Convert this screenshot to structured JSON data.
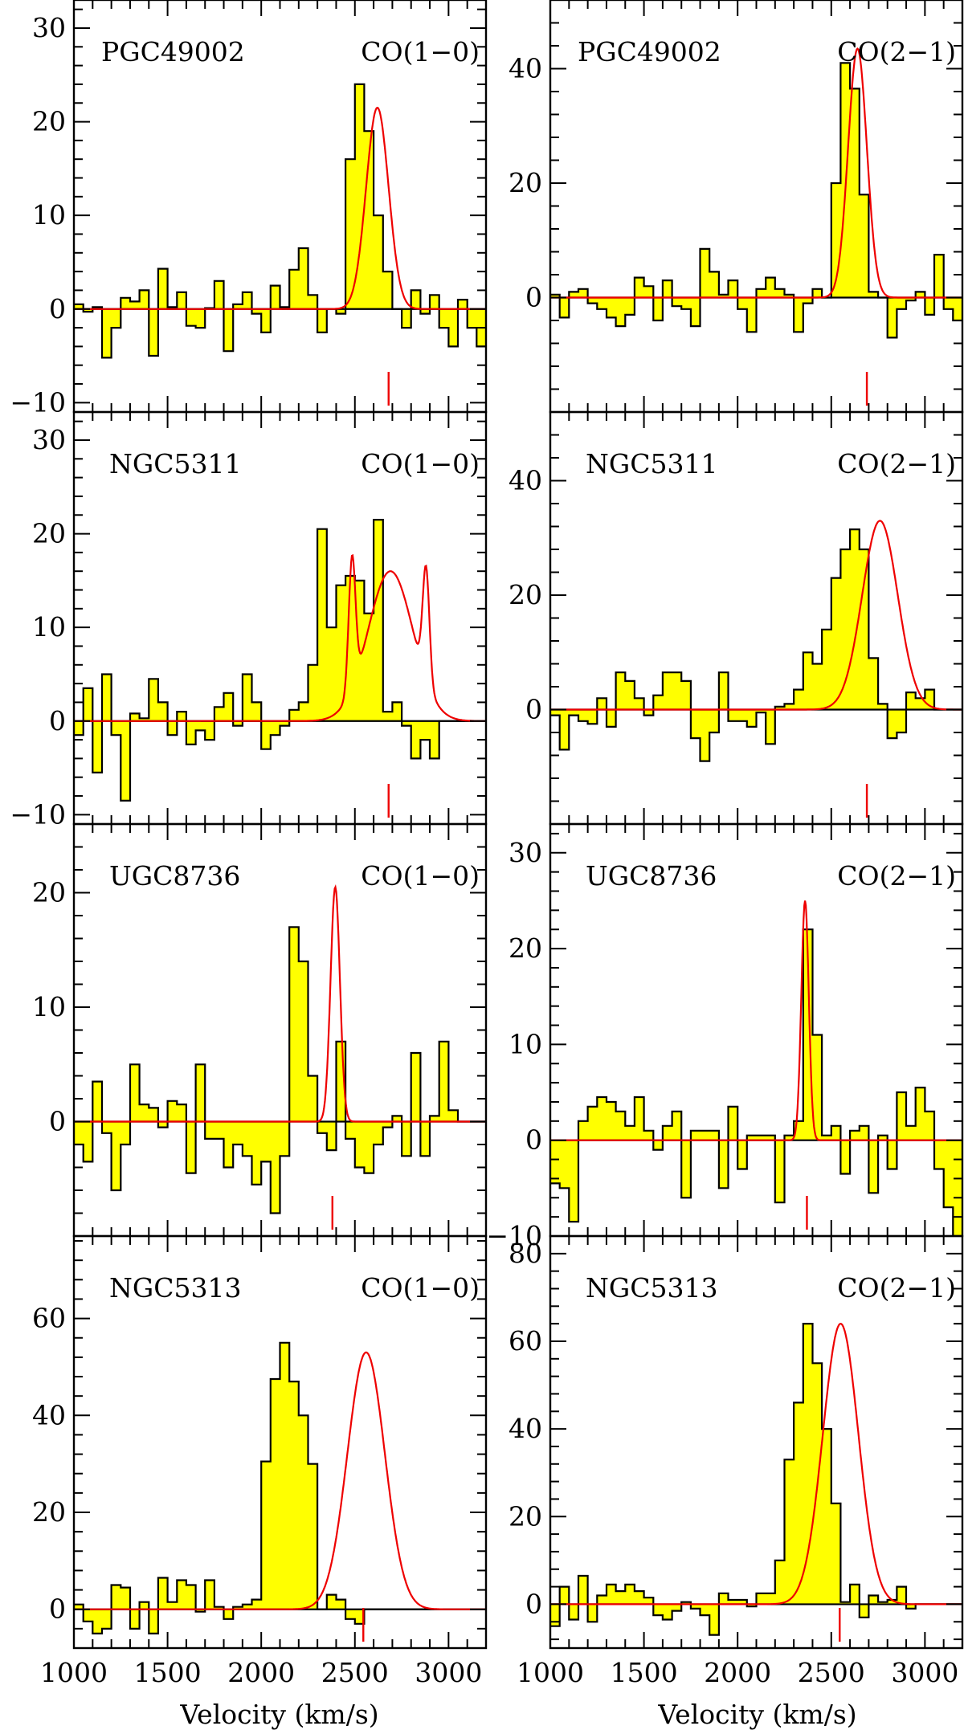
{
  "xlabel": "Velocity (km/s)",
  "colors": {
    "fill": "#ffff00",
    "fit": "#ee0000",
    "marker": "#ee0000",
    "axis": "#000000"
  },
  "chart_data": [
    {
      "type": "bar",
      "name": "PGC49002",
      "line": "CO(1−0)",
      "xlim": [
        1000,
        3200
      ],
      "ylim": [
        -11,
        33
      ],
      "yticks": [
        -10,
        0,
        10,
        20,
        30
      ],
      "xticks": [
        1000,
        1500,
        2000,
        2500,
        3000
      ],
      "bin_width": 50,
      "bin_start": 1000,
      "values": [
        0.5,
        -0.3,
        0.2,
        -5.2,
        -2.0,
        1.2,
        0.8,
        2.0,
        -5.0,
        4.3,
        0.2,
        1.8,
        -1.8,
        -2.0,
        0.1,
        3.0,
        -4.5,
        0.5,
        1.8,
        -0.5,
        -2.5,
        2.5,
        0.2,
        4.2,
        6.5,
        1.5,
        -2.5,
        0.0,
        -0.5,
        16.0,
        24.0,
        19.0,
        10.0,
        4.0,
        0.0,
        -2.0,
        2.0,
        -0.5,
        1.5,
        -2.0,
        -4.0,
        1.0,
        -2.0,
        -4.0
      ],
      "fit": [
        {
          "amp": 21.5,
          "center": 2620,
          "sigma": 60
        }
      ],
      "marker_velocity": 2680
    },
    {
      "type": "bar",
      "name": "PGC49002",
      "line": "CO(2−1)",
      "xlim": [
        1000,
        3200
      ],
      "ylim": [
        -20,
        52
      ],
      "yticks": [
        0,
        20,
        40
      ],
      "xticks": [
        1000,
        1500,
        2000,
        2500,
        3000
      ],
      "bin_width": 50,
      "bin_start": 1000,
      "values": [
        0.5,
        -3.5,
        1.0,
        1.5,
        -1.0,
        -2.0,
        -3.5,
        -5.0,
        -3.0,
        3.5,
        2.0,
        -4.0,
        3.0,
        -1.5,
        -2.0,
        -5.0,
        8.5,
        4.5,
        0.5,
        3.0,
        -2.0,
        -6.0,
        1.5,
        3.5,
        1.5,
        0.5,
        -6.0,
        -1.0,
        1.5,
        0.0,
        20.0,
        41.0,
        36.5,
        18.0,
        1.0,
        0.0,
        -7.0,
        -2.0,
        -0.5,
        1.0,
        -3.0,
        7.5,
        -2.0,
        -4.0
      ],
      "fit": [
        {
          "amp": 43.5,
          "center": 2640,
          "sigma": 50
        }
      ],
      "marker_velocity": 2690
    },
    {
      "type": "bar",
      "name": "NGC5311",
      "line": "CO(1−0)",
      "xlim": [
        1000,
        3200
      ],
      "ylim": [
        -11,
        33
      ],
      "yticks": [
        -10,
        0,
        10,
        20,
        30
      ],
      "xticks": [
        1000,
        1500,
        2000,
        2500,
        3000
      ],
      "bin_width": 50,
      "bin_start": 1000,
      "values": [
        -1.5,
        3.5,
        -5.5,
        5.0,
        -1.5,
        -8.5,
        0.8,
        0.3,
        4.5,
        2.0,
        -1.5,
        1.0,
        -2.5,
        -1.0,
        -2.0,
        1.5,
        3.0,
        -0.5,
        5.0,
        2.0,
        -3.0,
        -1.5,
        -0.5,
        1.2,
        2.0,
        6.0,
        20.5,
        10.0,
        14.5,
        15.5,
        15.0,
        11.5,
        21.5,
        1.0,
        2.0,
        -0.5,
        -4.0,
        -2.0,
        -4.0,
        0,
        0,
        0,
        0,
        0
      ],
      "fit": [
        {
          "amp": 16.0,
          "center": 2690,
          "sigma": 120
        },
        {
          "amp": 14.0,
          "center": 2485,
          "sigma": 18
        },
        {
          "amp": 12.0,
          "center": 2880,
          "sigma": 18
        }
      ],
      "marker_velocity": 2680
    },
    {
      "type": "bar",
      "name": "NGC5311",
      "line": "CO(2−1)",
      "xlim": [
        1000,
        3200
      ],
      "ylim": [
        -20,
        52
      ],
      "yticks": [
        0,
        20,
        40
      ],
      "xticks": [
        1000,
        1500,
        2000,
        2500,
        3000
      ],
      "bin_width": 50,
      "bin_start": 1000,
      "values": [
        -1.0,
        -7.0,
        -1.0,
        -2.0,
        -2.5,
        2.0,
        -3.0,
        6.5,
        5.0,
        2.0,
        -1.0,
        2.5,
        6.5,
        6.5,
        5.0,
        -5.0,
        -9.0,
        -4.0,
        6.5,
        -2.0,
        -2.0,
        -3.0,
        -0.5,
        -6.0,
        0.5,
        1.0,
        3.5,
        10.0,
        8.0,
        14.0,
        23.0,
        28.0,
        31.5,
        28.0,
        9.0,
        1.0,
        -5.0,
        -4.0,
        3.0,
        2.0,
        3.5,
        0,
        0,
        0
      ],
      "fit": [
        {
          "amp": 33.0,
          "center": 2760,
          "sigma": 95
        }
      ],
      "marker_velocity": 2690
    },
    {
      "type": "bar",
      "name": "UGC8736",
      "line": "CO(1−0)",
      "xlim": [
        1000,
        3200
      ],
      "ylim": [
        -10,
        26
      ],
      "yticks": [
        0,
        10,
        20
      ],
      "xticks": [
        1000,
        1500,
        2000,
        2500,
        3000
      ],
      "bin_width": 50,
      "bin_start": 1000,
      "values": [
        -2.0,
        -3.5,
        3.5,
        -1.0,
        -6.0,
        -2.0,
        5.0,
        1.5,
        1.2,
        -0.5,
        1.8,
        1.5,
        -4.5,
        5.0,
        -1.5,
        -1.5,
        -4.0,
        -2.0,
        -3.0,
        -5.5,
        -3.5,
        -8.0,
        -3.0,
        17.0,
        14.0,
        4.0,
        -1.0,
        -2.5,
        7.0,
        -1.5,
        -4.0,
        -4.5,
        -2.0,
        -0.5,
        0.5,
        -3.0,
        6.0,
        -3.0,
        0.5,
        7.0,
        1.0,
        0,
        0,
        0
      ],
      "fit": [
        {
          "amp": 20.5,
          "center": 2395,
          "sigma": 25
        }
      ],
      "marker_velocity": 2380
    },
    {
      "type": "bar",
      "name": "UGC8736",
      "line": "CO(2−1)",
      "xlim": [
        1000,
        3200
      ],
      "ylim": [
        -10,
        33
      ],
      "yticks": [
        -10,
        0,
        10,
        20,
        30
      ],
      "xticks": [
        1000,
        1500,
        2000,
        2500,
        3000
      ],
      "bin_width": 50,
      "bin_start": 1000,
      "values": [
        -4.5,
        -5.0,
        -8.5,
        2.0,
        3.5,
        4.5,
        4.0,
        3.0,
        1.5,
        4.5,
        1.0,
        -1.0,
        1.5,
        3.0,
        -6.0,
        1.0,
        1.0,
        1.0,
        -5.0,
        3.5,
        -3.0,
        0.5,
        0.5,
        0.5,
        -6.5,
        0.5,
        2.0,
        22.0,
        11.0,
        0.5,
        1.5,
        -3.5,
        1.0,
        1.5,
        -5.5,
        0.5,
        -3.0,
        5.0,
        1.5,
        5.5,
        3.0,
        -3.0,
        -7.0,
        -10.0
      ],
      "fit": [
        {
          "amp": 25.0,
          "center": 2360,
          "sigma": 20
        }
      ],
      "marker_velocity": 2370
    },
    {
      "type": "bar",
      "name": "NGC5313",
      "line": "CO(1−0)",
      "xlim": [
        1000,
        3200
      ],
      "ylim": [
        -8,
        77
      ],
      "yticks": [
        0,
        20,
        40,
        60
      ],
      "xticks": [
        1000,
        1500,
        2000,
        2500,
        3000
      ],
      "bin_width": 50,
      "bin_start": 1000,
      "values": [
        1.0,
        -2.5,
        -5.0,
        -4.0,
        5.0,
        4.5,
        -4.0,
        1.5,
        -5.0,
        6.5,
        1.5,
        6.0,
        5.0,
        -0.5,
        6.0,
        0.5,
        -2.0,
        0.5,
        1.0,
        2.0,
        30.5,
        47.5,
        55.0,
        47.0,
        40.0,
        30.0,
        0.0,
        3.0,
        2.0,
        -2.0,
        -3.0,
        0,
        0,
        0,
        0,
        0,
        0,
        0,
        0,
        0,
        0,
        0,
        0,
        0
      ],
      "fit": [
        {
          "amp": 53.0,
          "center": 2560,
          "sigma": 100
        }
      ],
      "marker_velocity": 2545
    },
    {
      "type": "bar",
      "name": "NGC5313",
      "line": "CO(2−1)",
      "xlim": [
        1000,
        3200
      ],
      "ylim": [
        -10,
        84
      ],
      "yticks": [
        0,
        20,
        40,
        60,
        80
      ],
      "xticks": [
        1000,
        1500,
        2000,
        2500,
        3000
      ],
      "bin_width": 50,
      "bin_start": 1000,
      "values": [
        -5.0,
        4.0,
        -3.5,
        6.5,
        -4.0,
        2.0,
        4.5,
        3.0,
        4.5,
        3.0,
        1.5,
        -2.5,
        -3.5,
        -1.5,
        0.5,
        -1.0,
        -2.5,
        -7.0,
        2.5,
        1.0,
        1.0,
        -0.5,
        2.5,
        2.5,
        10.0,
        33.0,
        46.0,
        64.0,
        55.0,
        40.0,
        23.0,
        0.5,
        4.5,
        -3.0,
        2.0,
        0.5,
        1.0,
        4.0,
        -1.0,
        0,
        0,
        0,
        0,
        0
      ],
      "fit": [
        {
          "amp": 64.0,
          "center": 2550,
          "sigma": 95
        }
      ],
      "marker_velocity": 2545
    }
  ]
}
